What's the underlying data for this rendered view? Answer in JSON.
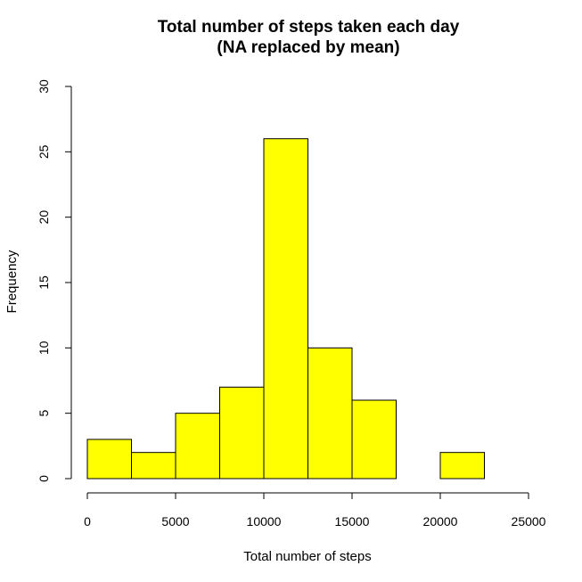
{
  "chart_data": {
    "type": "bar",
    "histogram": true,
    "title": "Total number of steps taken each day",
    "subtitle": "(NA replaced by mean)",
    "xlabel": "Total number of steps",
    "ylabel": "Frequency",
    "bins": [
      {
        "from": 0,
        "to": 2500,
        "value": 3
      },
      {
        "from": 2500,
        "to": 5000,
        "value": 2
      },
      {
        "from": 5000,
        "to": 7500,
        "value": 5
      },
      {
        "from": 7500,
        "to": 10000,
        "value": 7
      },
      {
        "from": 10000,
        "to": 12500,
        "value": 26
      },
      {
        "from": 12500,
        "to": 15000,
        "value": 10
      },
      {
        "from": 15000,
        "to": 17500,
        "value": 6
      },
      {
        "from": 17500,
        "to": 20000,
        "value": 0
      },
      {
        "from": 20000,
        "to": 22500,
        "value": 2
      },
      {
        "from": 22500,
        "to": 25000,
        "value": 0
      }
    ],
    "xlim": [
      0,
      25000
    ],
    "ylim": [
      0,
      30
    ],
    "xticks": [
      0,
      5000,
      10000,
      15000,
      20000,
      25000
    ],
    "yticks": [
      0,
      5,
      10,
      15,
      20,
      25,
      30
    ],
    "bar_color": "#ffff00",
    "grid": false,
    "legend": "none"
  }
}
